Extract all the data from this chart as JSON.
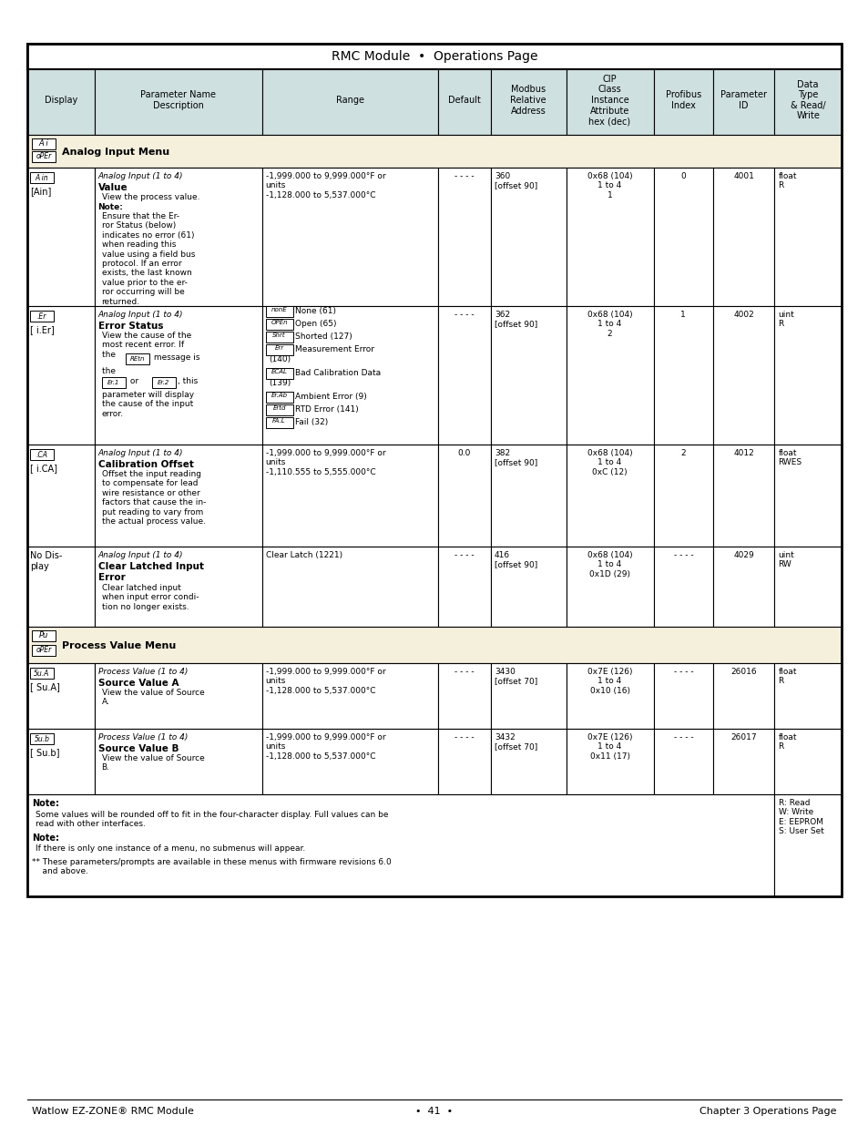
{
  "title": "RMC Module  •  Operations Page",
  "header_bg": "#cfe0e0",
  "section_bg": "#f5f0dc",
  "white_bg": "#ffffff",
  "border_color": "#000000",
  "footer_left": "Watlow EZ-ZONE® RMC Module",
  "footer_center": "•  41  •",
  "footer_right": "Chapter 3 Operations Page"
}
